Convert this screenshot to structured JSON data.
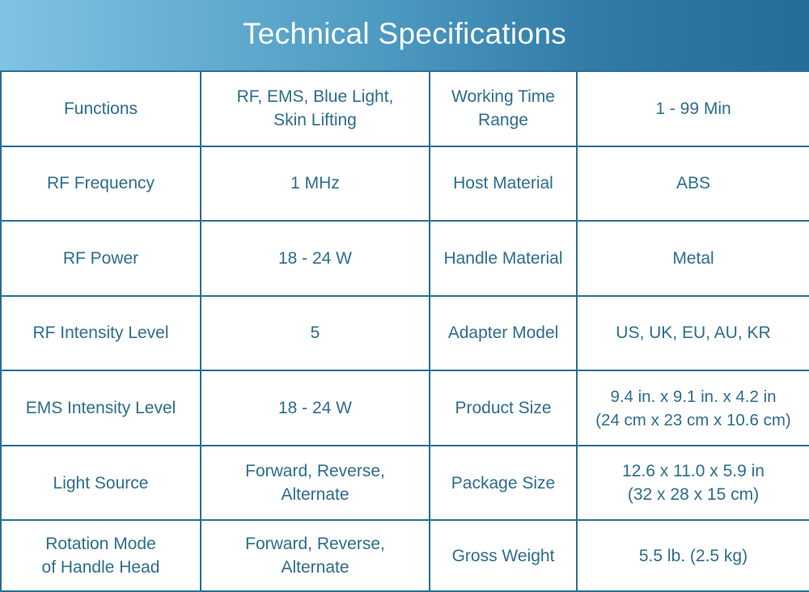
{
  "header": {
    "title": "Technical Specifications"
  },
  "specs": {
    "rows": [
      {
        "label_left": "Functions",
        "value_left": [
          "RF, EMS, Blue Light,",
          "Skin Lifting"
        ],
        "label_right": [
          "Working Time",
          "Range"
        ],
        "value_right": [
          "1 - 99 Min"
        ]
      },
      {
        "label_left": "RF Frequency",
        "value_left": [
          "1 MHz"
        ],
        "label_right": [
          "Host Material"
        ],
        "value_right": [
          "ABS"
        ]
      },
      {
        "label_left": "RF Power",
        "value_left": [
          "18 - 24 W"
        ],
        "label_right": [
          "Handle Material"
        ],
        "value_right": [
          "Metal"
        ]
      },
      {
        "label_left": "RF Intensity Level",
        "value_left": [
          "5"
        ],
        "label_right": [
          "Adapter Model"
        ],
        "value_right": [
          "US, UK, EU, AU, KR"
        ]
      },
      {
        "label_left": "EMS Intensity Level",
        "value_left": [
          "18 - 24 W"
        ],
        "label_right": [
          "Product Size"
        ],
        "value_right": [
          "9.4 in. x 9.1 in. x 4.2 in",
          "(24 cm x 23 cm x 10.6 cm)"
        ]
      },
      {
        "label_left": "Light Source",
        "value_left": [
          "Forward, Reverse,",
          "Alternate"
        ],
        "label_right": [
          "Package Size"
        ],
        "value_right": [
          "12.6 x 11.0 x 5.9 in",
          "(32 x 28 x 15 cm)"
        ]
      },
      {
        "label_left": "Rotation Mode\nof Handle Head",
        "value_left": [
          "Forward, Reverse,",
          "Alternate"
        ],
        "label_right": [
          "Gross Weight"
        ],
        "value_right": [
          "5.5 lb. (2.5 kg)"
        ]
      }
    ]
  },
  "colors": {
    "banner_start": "#7fc3e2",
    "banner_end": "#236d98",
    "text": "#2e6d8c",
    "grid": "#2b6f93"
  }
}
